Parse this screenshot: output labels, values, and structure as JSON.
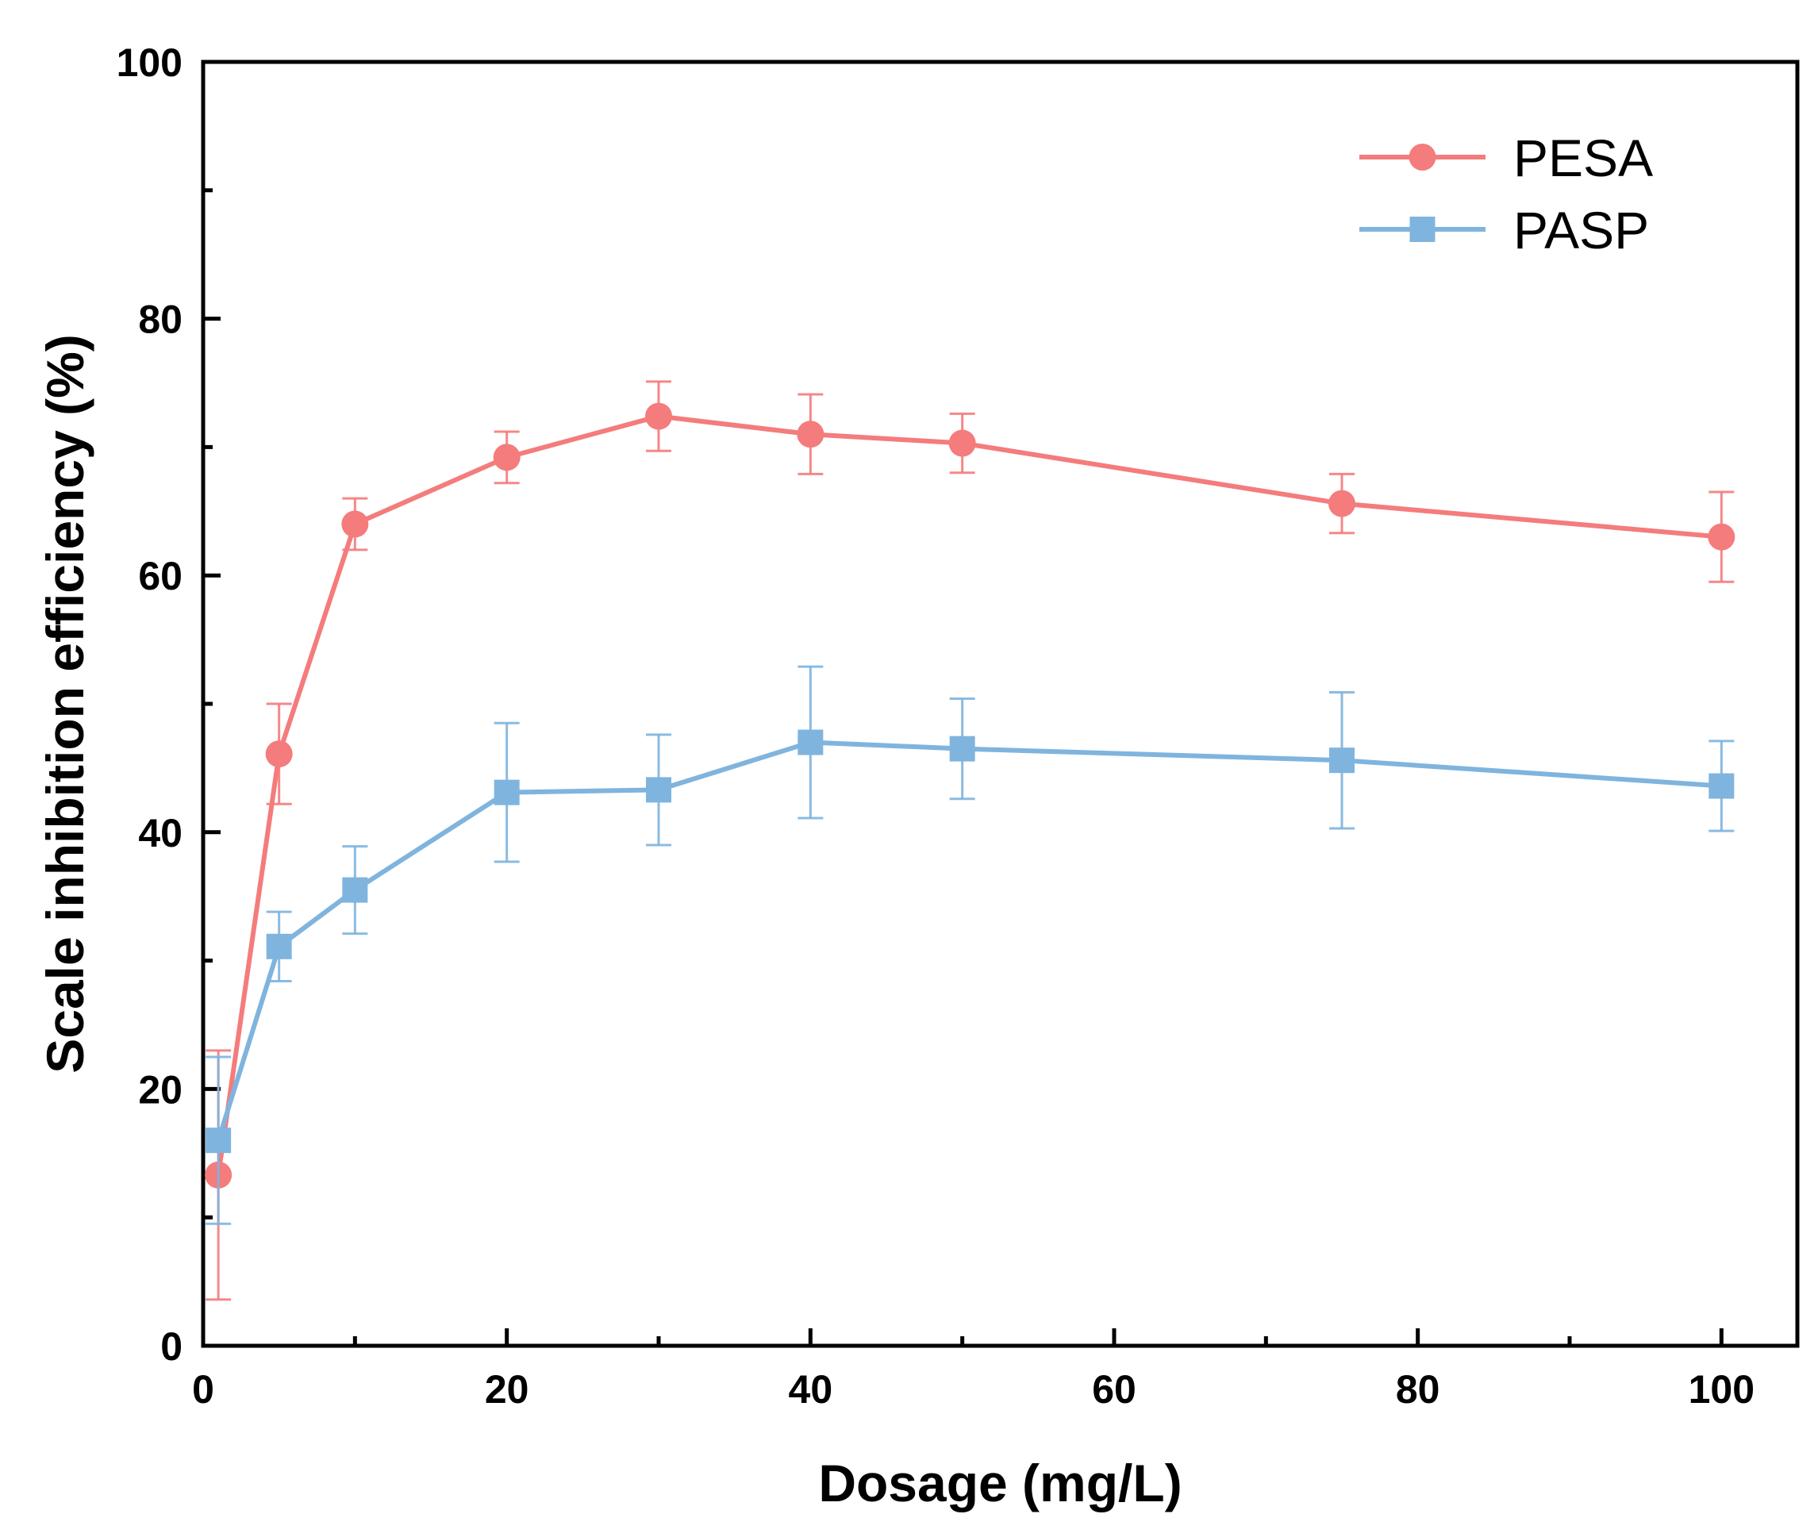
{
  "chart_data": {
    "type": "line",
    "title": "",
    "xlabel": "Dosage (mg/L)",
    "ylabel": "Scale inhibition efficiency (%)",
    "xlim": [
      0,
      105
    ],
    "ylim": [
      0,
      100
    ],
    "xticks": [
      0,
      20,
      40,
      60,
      80,
      100
    ],
    "xticks_minor": [
      10,
      30,
      50,
      70,
      90
    ],
    "yticks": [
      0,
      20,
      40,
      60,
      80,
      100
    ],
    "yticks_minor": [
      10,
      30,
      50,
      70,
      90
    ],
    "grid": false,
    "legend_position": "top-right",
    "x": [
      1,
      5,
      10,
      20,
      30,
      40,
      50,
      75,
      100
    ],
    "series": [
      {
        "name": "PESA",
        "color": "#f47c7c",
        "marker": "circle",
        "values": [
          13.3,
          46.1,
          64.0,
          69.2,
          72.4,
          71.0,
          70.3,
          65.6,
          63.0
        ],
        "errors": [
          9.7,
          3.9,
          2.0,
          2.0,
          2.7,
          3.1,
          2.3,
          2.3,
          3.5
        ]
      },
      {
        "name": "PASP",
        "color": "#7fb4de",
        "marker": "square",
        "values": [
          16.0,
          31.1,
          35.5,
          43.1,
          43.3,
          47.0,
          46.5,
          45.6,
          43.6
        ],
        "errors": [
          6.5,
          2.7,
          3.4,
          5.4,
          4.3,
          5.9,
          3.9,
          5.3,
          3.5
        ]
      }
    ]
  }
}
